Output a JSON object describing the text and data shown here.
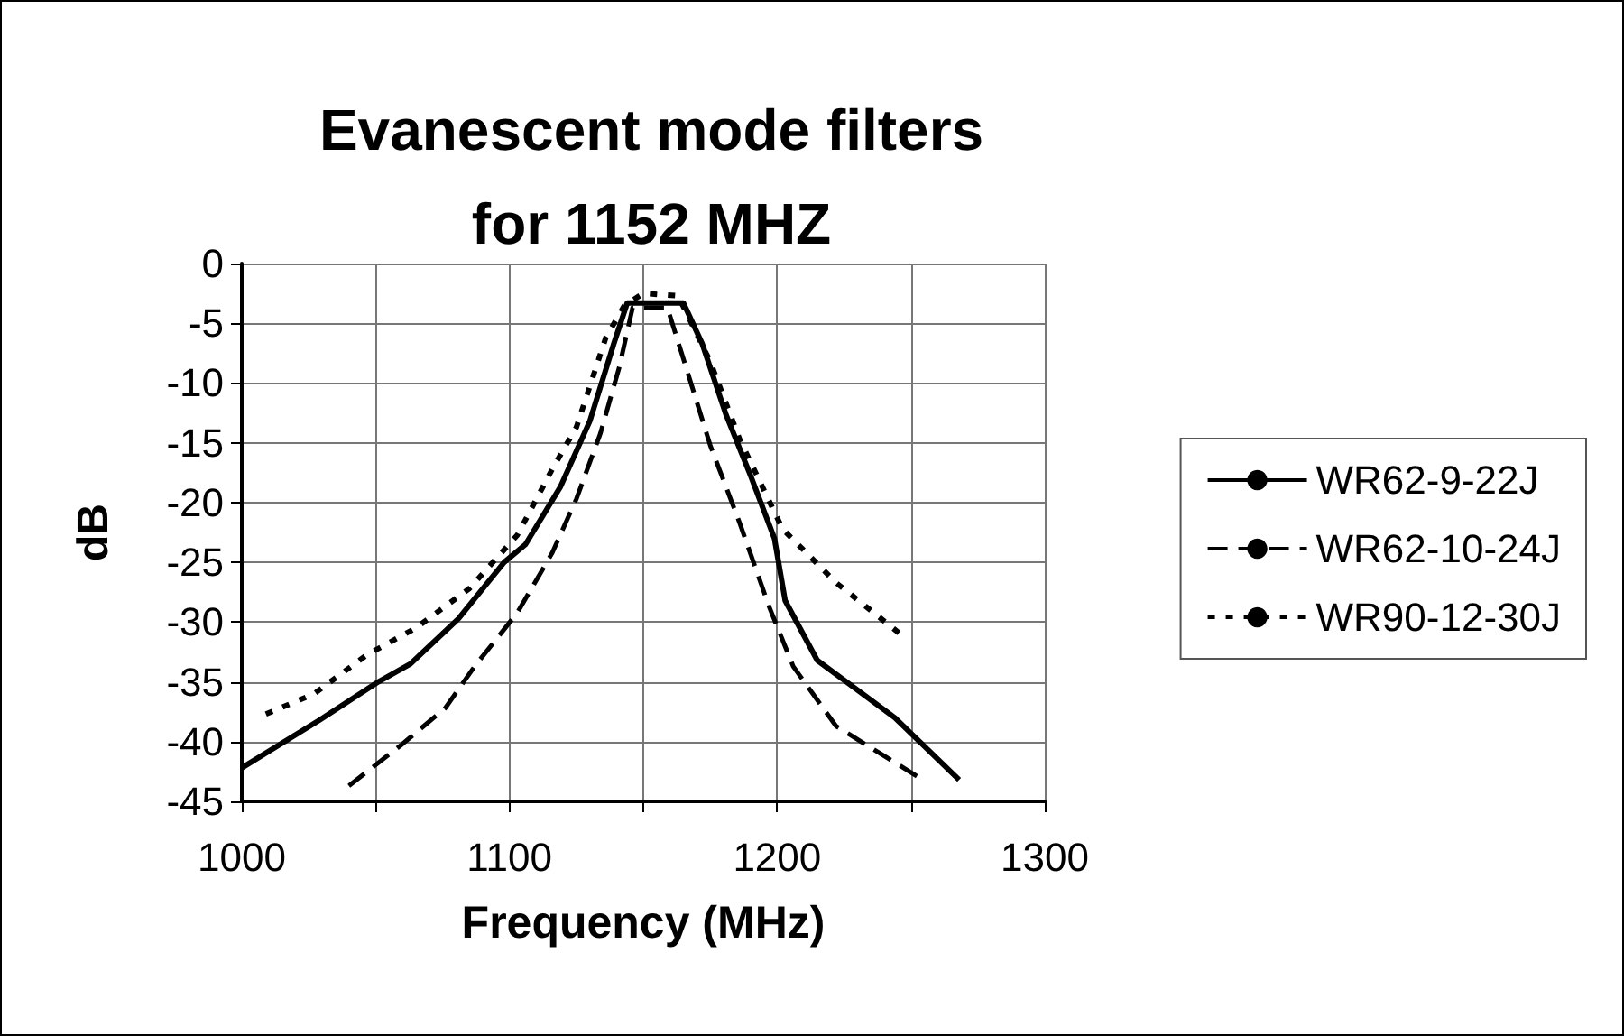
{
  "chart_data": {
    "type": "line",
    "title": "Evanescent mode filters\nfor 1152 MHZ",
    "xlabel": "Frequency (MHz)",
    "ylabel": "dB",
    "xlim": [
      1000,
      1300
    ],
    "xticks": [
      1000,
      {
        "value": 1050,
        "label": null
      },
      1100,
      {
        "value": 1150,
        "label": null
      },
      1200,
      {
        "value": 1250,
        "label": null
      },
      1300
    ],
    "ylim": [
      -45,
      0
    ],
    "yticks": [
      -45,
      -40,
      -35,
      -30,
      -25,
      -20,
      -15,
      -10,
      -5,
      0
    ],
    "grid": true,
    "legend": "right",
    "marker": "none",
    "series": [
      {
        "name": "WR62-9-22J",
        "color": "#000000",
        "line_style": "solid",
        "x": [
          1000,
          1029,
          1051,
          1063,
          1081,
          1098,
          1106,
          1119,
          1130,
          1139,
          1144,
          1165,
          1172,
          1181,
          1190,
          1199,
          1203,
          1215,
          1244,
          1268
        ],
        "values": [
          -42.2,
          -38.2,
          -35,
          -33.5,
          -29.7,
          -25,
          -23.5,
          -18.7,
          -13.2,
          -6.7,
          -3.3,
          -3.3,
          -6.7,
          -12.7,
          -17.7,
          -23,
          -28.2,
          -33.2,
          -38,
          -43.2
        ]
      },
      {
        "name": "WR62-10-24J",
        "color": "#000000",
        "line_style": "dashed",
        "x": [
          1040,
          1060,
          1076,
          1087,
          1103,
          1116,
          1125,
          1134,
          1141,
          1146,
          1159,
          1166,
          1175,
          1186,
          1197,
          1206,
          1222,
          1253
        ],
        "values": [
          -43.7,
          -40.2,
          -37.2,
          -33.7,
          -29.2,
          -24.2,
          -19.7,
          -14.2,
          -8.7,
          -3.7,
          -3.7,
          -8.7,
          -15.2,
          -21.7,
          -28.7,
          -33.7,
          -38.7,
          -43
        ]
      },
      {
        "name": "WR90-12-30J",
        "color": "#000000",
        "line_style": "dotted",
        "x": [
          1009,
          1027,
          1047,
          1065,
          1085,
          1103,
          1116,
          1125,
          1136,
          1143,
          1150,
          1163,
          1175,
          1186,
          1202,
          1222,
          1246
        ],
        "values": [
          -37.7,
          -36,
          -32.7,
          -30.5,
          -27.2,
          -22.7,
          -17.2,
          -13.7,
          -6.2,
          -3.5,
          -2.5,
          -2.7,
          -8.2,
          -14.7,
          -22.2,
          -26.7,
          -31
        ]
      }
    ]
  }
}
